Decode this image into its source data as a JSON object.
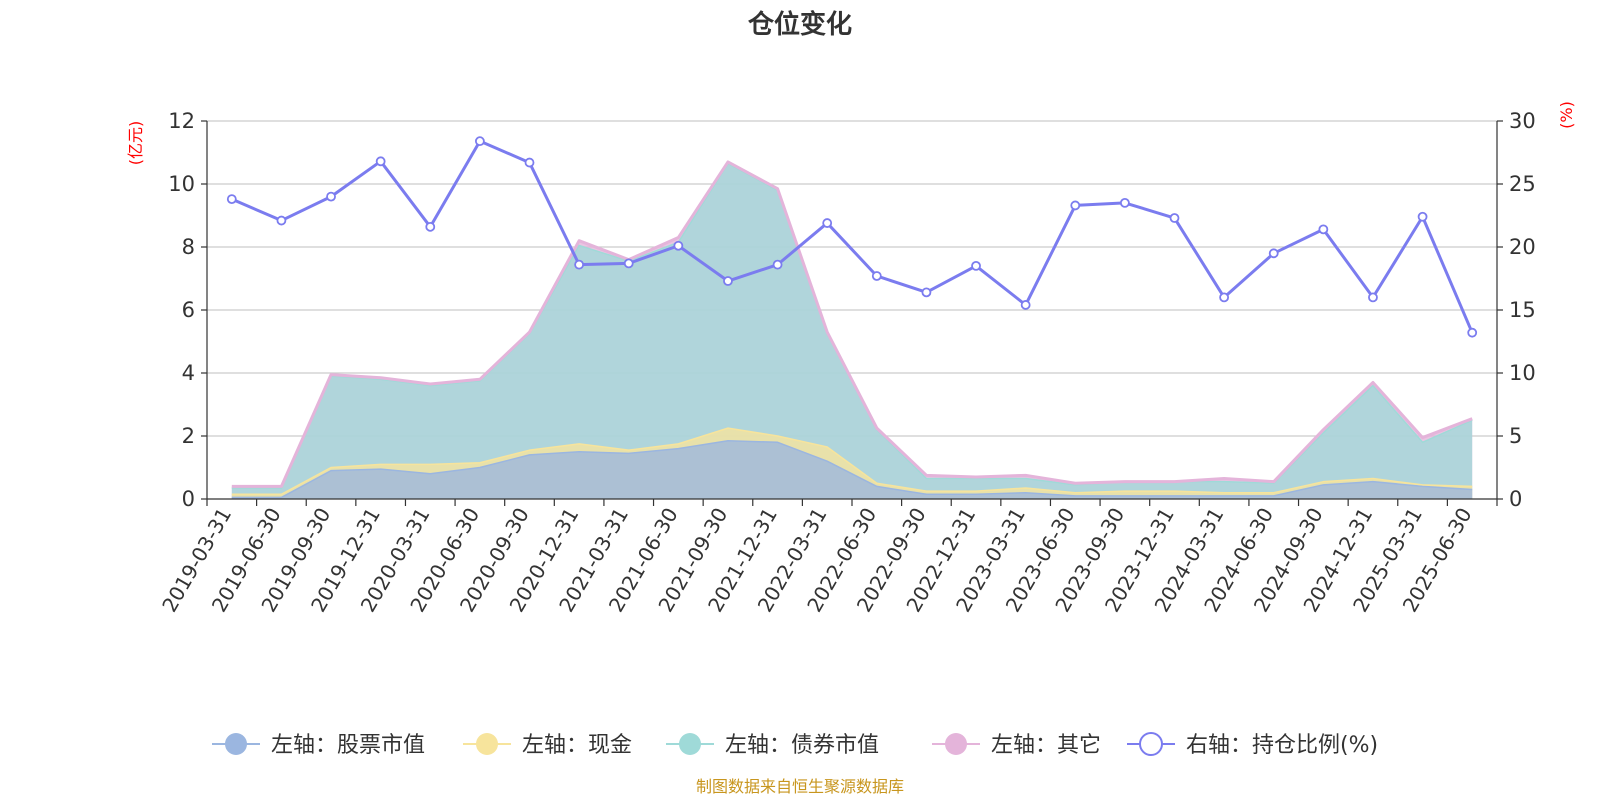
{
  "chart_data": {
    "type": "area",
    "title": "仓位变化",
    "left_unit": "(亿元)",
    "right_unit": "(%)",
    "left_axis": {
      "min": 0,
      "max": 12,
      "ticks": [
        "0",
        "2",
        "4",
        "6",
        "8",
        "10",
        "12"
      ]
    },
    "right_axis": {
      "min": 0,
      "max": 30,
      "ticks": [
        "0",
        "5",
        "10",
        "15",
        "20",
        "25",
        "30"
      ]
    },
    "categories": [
      "2019-03-31",
      "2019-06-30",
      "2019-09-30",
      "2019-12-31",
      "2020-03-31",
      "2020-06-30",
      "2020-09-30",
      "2020-12-31",
      "2021-03-31",
      "2021-06-30",
      "2021-09-30",
      "2021-12-31",
      "2022-03-31",
      "2022-06-30",
      "2022-09-30",
      "2022-12-31",
      "2023-03-31",
      "2023-06-30",
      "2023-09-30",
      "2023-12-31",
      "2024-03-31",
      "2024-06-30",
      "2024-09-30",
      "2024-12-31",
      "2025-03-31",
      "2025-06-30"
    ],
    "series": [
      {
        "name": "左轴：股票市值",
        "axis": "left",
        "stack": true,
        "color": "#9bb6e0",
        "values": [
          0.05,
          0.05,
          0.9,
          0.95,
          0.8,
          1.0,
          1.4,
          1.5,
          1.45,
          1.6,
          1.85,
          1.8,
          1.2,
          0.4,
          0.15,
          0.15,
          0.2,
          0.1,
          0.1,
          0.1,
          0.1,
          0.1,
          0.45,
          0.55,
          0.4,
          0.3
        ]
      },
      {
        "name": "左轴：现金",
        "axis": "left",
        "stack": true,
        "color": "#f7e49c",
        "values": [
          0.1,
          0.1,
          0.1,
          0.15,
          0.3,
          0.15,
          0.15,
          0.25,
          0.1,
          0.15,
          0.4,
          0.2,
          0.45,
          0.1,
          0.1,
          0.1,
          0.15,
          0.1,
          0.15,
          0.15,
          0.1,
          0.1,
          0.1,
          0.1,
          0.05,
          0.1
        ]
      },
      {
        "name": "左轴：债券市值",
        "axis": "left",
        "stack": true,
        "color": "#9fdad8",
        "values": [
          0.2,
          0.2,
          2.9,
          2.7,
          2.5,
          2.6,
          3.7,
          6.3,
          6.0,
          6.4,
          8.4,
          7.8,
          3.6,
          1.7,
          0.4,
          0.4,
          0.3,
          0.25,
          0.3,
          0.3,
          0.35,
          0.3,
          1.55,
          2.95,
          1.35,
          2.1
        ]
      },
      {
        "name": "左轴：其它",
        "axis": "left",
        "stack": true,
        "color": "#e4b4da",
        "values": [
          0.05,
          0.05,
          0.05,
          0.05,
          0.05,
          0.05,
          0.05,
          0.15,
          0.05,
          0.15,
          0.05,
          0.05,
          0.05,
          0.05,
          0.1,
          0.05,
          0.1,
          0.05,
          0.0,
          0.0,
          0.1,
          0.05,
          0.1,
          0.1,
          0.15,
          0.05
        ]
      },
      {
        "name": "右轴：持仓比例(%)",
        "axis": "right",
        "type": "line",
        "color": "#7b7cef",
        "values": [
          23.8,
          22.1,
          24.0,
          26.8,
          21.6,
          28.4,
          26.7,
          18.6,
          18.7,
          20.1,
          17.3,
          18.6,
          21.9,
          17.7,
          16.4,
          18.5,
          15.4,
          23.3,
          23.5,
          22.3,
          16.0,
          19.5,
          21.4,
          16.0,
          22.4,
          13.2
        ]
      }
    ],
    "legend_position": "bottom",
    "grid": true
  },
  "footer": {
    "source": "制图数据来自恒生聚源数据库"
  }
}
